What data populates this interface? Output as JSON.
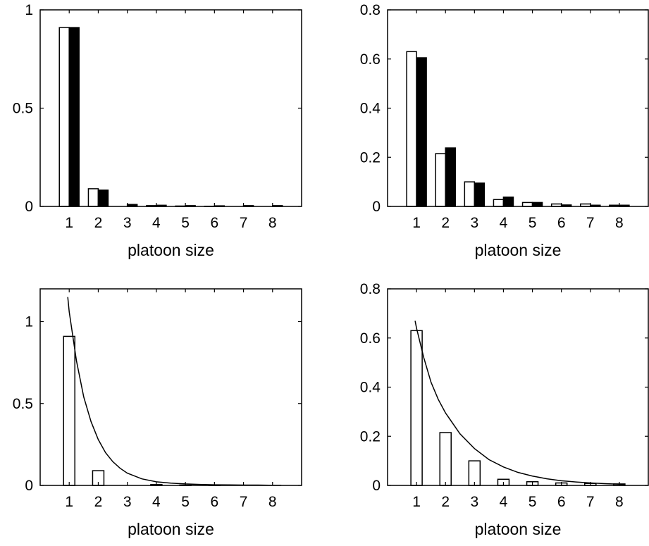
{
  "figure": {
    "colors": {
      "background": "#ffffff",
      "stroke": "#000000",
      "bar_open": "#ffffff",
      "bar_filled": "#000000"
    }
  },
  "chart_data": [
    {
      "type": "bar",
      "position": "top-left",
      "xlabel": "platoon size",
      "ylabel": "",
      "categories": [
        "1",
        "2",
        "3",
        "4",
        "5",
        "6",
        "7",
        "8"
      ],
      "xlim": [
        0,
        9
      ],
      "ylim": [
        0,
        1
      ],
      "yticks": [
        0,
        0.5,
        1
      ],
      "ytick_labels": [
        "0",
        "0.5",
        "1"
      ],
      "series": [
        {
          "style": "open",
          "values": [
            0.91,
            0.09,
            0.0,
            0.004,
            0.002,
            0.001,
            0.0,
            0.0
          ]
        },
        {
          "style": "filled",
          "values": [
            0.91,
            0.083,
            0.01,
            0.006,
            0.004,
            0.003,
            0.004,
            0.004
          ]
        }
      ]
    },
    {
      "type": "bar",
      "position": "top-right",
      "xlabel": "platoon size",
      "ylabel": "",
      "categories": [
        "1",
        "2",
        "3",
        "4",
        "5",
        "6",
        "7",
        "8"
      ],
      "xlim": [
        0,
        9
      ],
      "ylim": [
        0,
        0.8
      ],
      "yticks": [
        0,
        0.2,
        0.4,
        0.6,
        0.8
      ],
      "ytick_labels": [
        "0",
        "0.2",
        "0.4",
        "0.6",
        "0.8"
      ],
      "series": [
        {
          "style": "open",
          "values": [
            0.63,
            0.215,
            0.1,
            0.028,
            0.016,
            0.01,
            0.01,
            0.005
          ]
        },
        {
          "style": "filled",
          "values": [
            0.605,
            0.238,
            0.095,
            0.038,
            0.016,
            0.006,
            0.005,
            0.005
          ]
        }
      ]
    },
    {
      "type": "bar",
      "position": "bottom-left",
      "xlabel": "platoon size",
      "ylabel": "",
      "categories": [
        "1",
        "2",
        "3",
        "4",
        "5",
        "6",
        "7",
        "8"
      ],
      "xlim": [
        0,
        9
      ],
      "ylim": [
        0,
        1.2
      ],
      "yticks": [
        0,
        0.5,
        1
      ],
      "ytick_labels": [
        "0",
        "0.5",
        "1"
      ],
      "series": [
        {
          "style": "open",
          "values": [
            0.91,
            0.09,
            0.0,
            0.005,
            0.002,
            0.001,
            0.0,
            0.0
          ]
        }
      ],
      "curve": {
        "x": [
          0.95,
          1.0,
          1.25,
          1.5,
          1.75,
          2.0,
          2.25,
          2.5,
          2.75,
          3.0,
          3.5,
          4.0,
          4.5,
          5.0,
          5.5,
          6.0,
          6.5,
          7.0,
          7.5,
          8.0,
          8.3
        ],
        "y": [
          1.15,
          1.06,
          0.76,
          0.54,
          0.39,
          0.28,
          0.2,
          0.145,
          0.105,
          0.075,
          0.04,
          0.022,
          0.014,
          0.009,
          0.006,
          0.004,
          0.003,
          0.002,
          0.002,
          0.001,
          0.001
        ]
      }
    },
    {
      "type": "bar",
      "position": "bottom-right",
      "xlabel": "platoon size",
      "ylabel": "",
      "categories": [
        "1",
        "2",
        "3",
        "4",
        "5",
        "6",
        "7",
        "8"
      ],
      "xlim": [
        0,
        9
      ],
      "ylim": [
        0,
        0.8
      ],
      "yticks": [
        0,
        0.2,
        0.4,
        0.6,
        0.8
      ],
      "ytick_labels": [
        "0",
        "0.2",
        "0.4",
        "0.6",
        "0.8"
      ],
      "series": [
        {
          "style": "open",
          "values": [
            0.63,
            0.215,
            0.1,
            0.025,
            0.015,
            0.01,
            0.008,
            0.006
          ]
        }
      ],
      "curve": {
        "x": [
          0.95,
          1.0,
          1.25,
          1.5,
          1.75,
          2.0,
          2.5,
          3.0,
          3.5,
          4.0,
          4.5,
          5.0,
          5.5,
          6.0,
          6.5,
          7.0,
          7.5,
          8.0,
          8.2
        ],
        "y": [
          0.67,
          0.64,
          0.52,
          0.42,
          0.35,
          0.295,
          0.21,
          0.15,
          0.105,
          0.075,
          0.053,
          0.038,
          0.027,
          0.019,
          0.014,
          0.01,
          0.007,
          0.005,
          0.004
        ]
      }
    }
  ]
}
